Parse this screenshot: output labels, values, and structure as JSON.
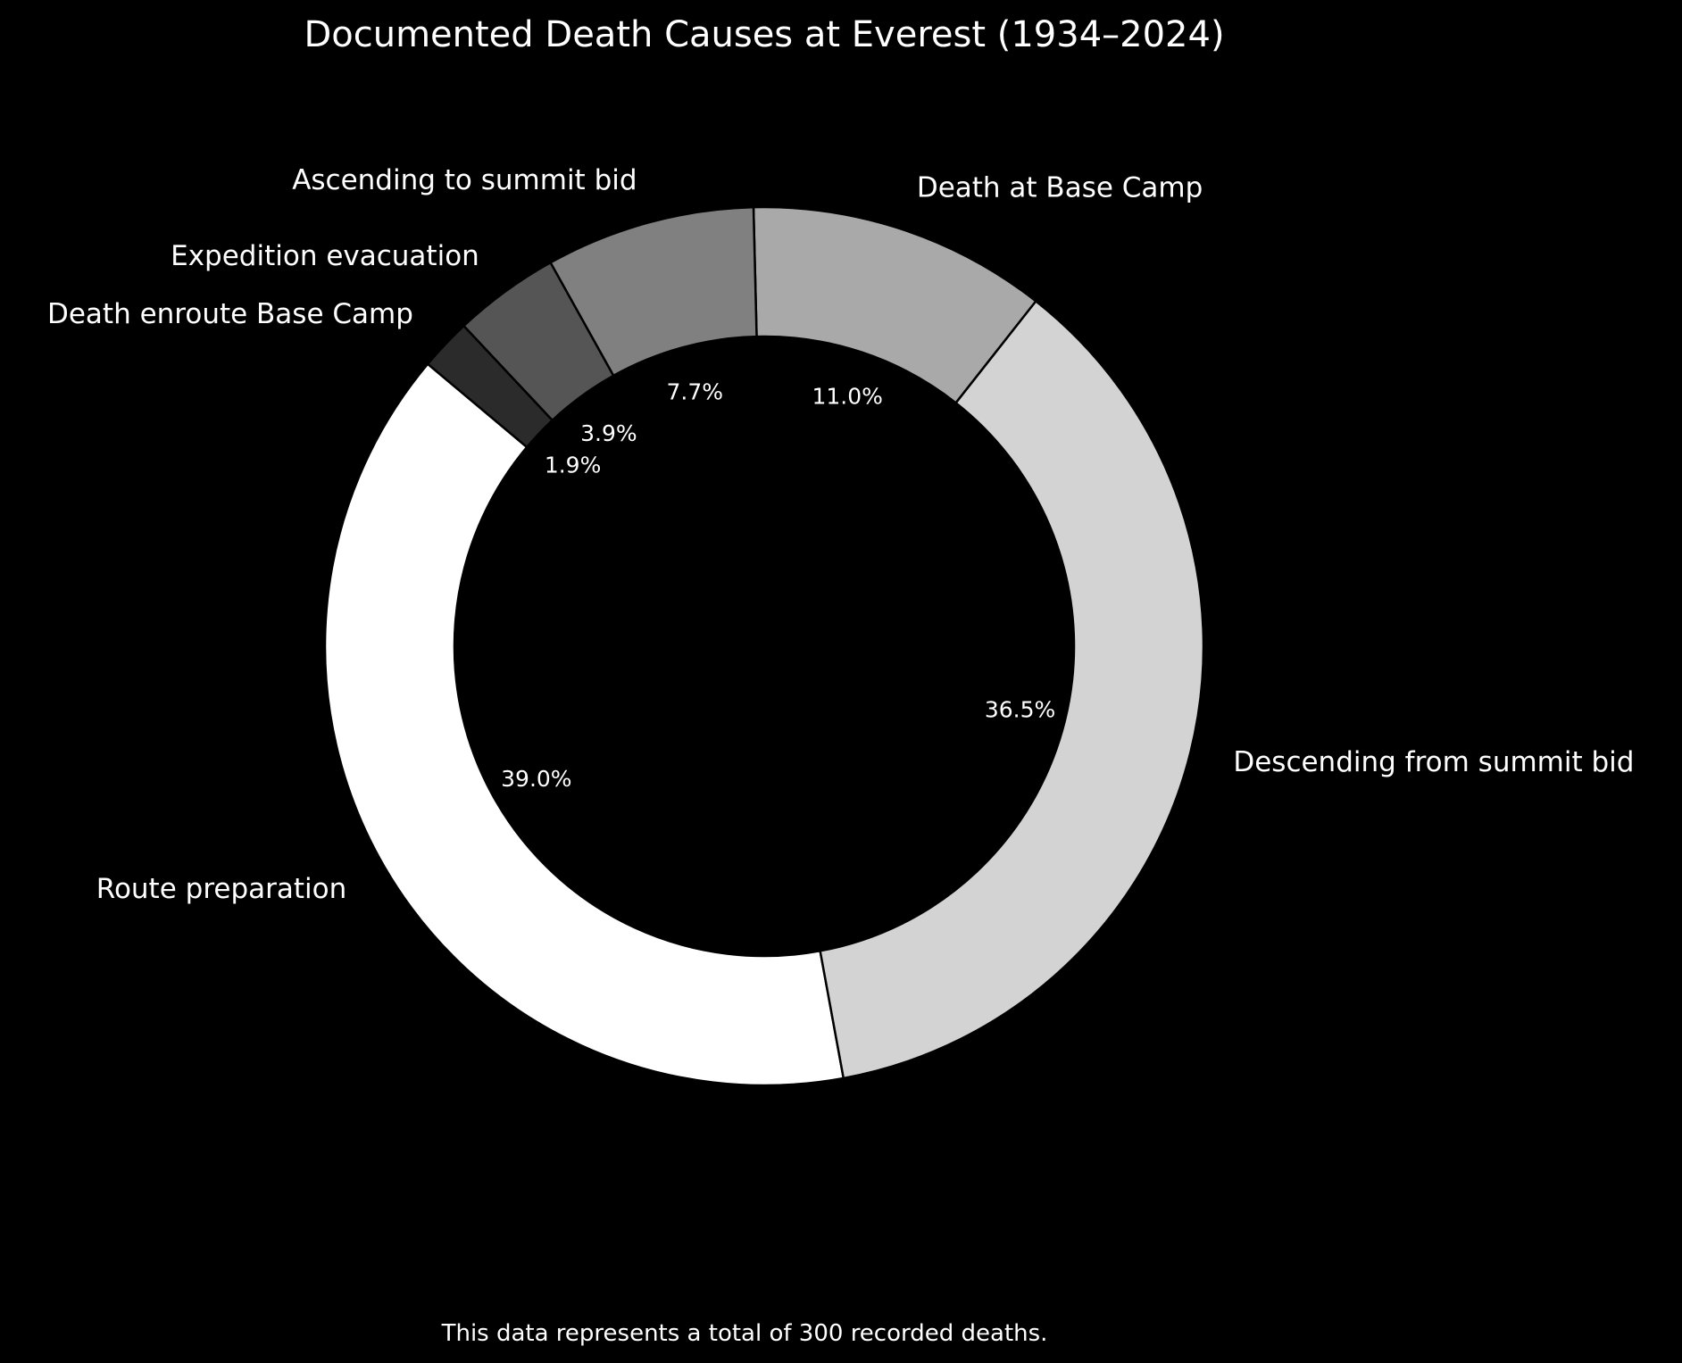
{
  "chart_data": {
    "type": "pie",
    "style": "donut",
    "title": "Documented Death Causes at Everest (1934–2024)",
    "footnote": "This data represents a total of 300 recorded deaths.",
    "start_angle_deg": 140,
    "direction": "counterclockwise",
    "slices": [
      {
        "label": "Route preparation",
        "value": 39.0,
        "pct_label": "39.0%",
        "color": "#ffffff"
      },
      {
        "label": "Descending from summit bid",
        "value": 36.5,
        "pct_label": "36.5%",
        "color": "#d3d3d3"
      },
      {
        "label": "Death at Base Camp",
        "value": 11.0,
        "pct_label": "11.0%",
        "color": "#a9a9a9"
      },
      {
        "label": "Ascending to summit bid",
        "value": 7.7,
        "pct_label": "7.7%",
        "color": "#808080"
      },
      {
        "label": "Expedition evacuation",
        "value": 3.9,
        "pct_label": "3.9%",
        "color": "#555555"
      },
      {
        "label": "Death enroute Base Camp",
        "value": 1.9,
        "pct_label": "1.9%",
        "color": "#2b2b2b"
      }
    ],
    "background": "#000000",
    "edge_color": "#000000",
    "text_color": "#ffffff"
  }
}
